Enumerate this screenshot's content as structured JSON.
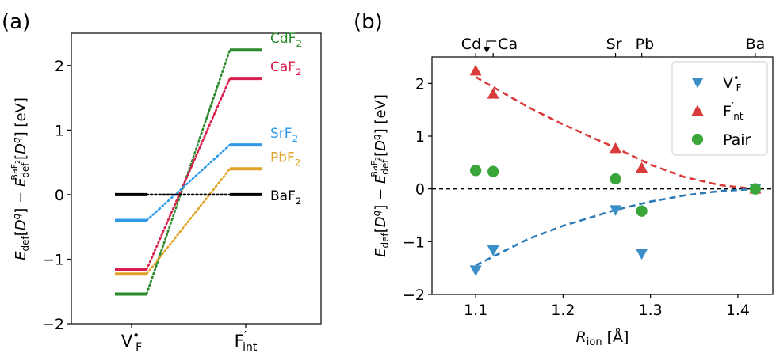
{
  "chart_data": [
    {
      "type": "line",
      "panel_label": "(a)",
      "categories": [
        "V•F",
        "F′int"
      ],
      "ylim": [
        -2,
        2.5
      ],
      "yticks": [
        -2,
        -1,
        0,
        1,
        2
      ],
      "ylabel": "Edef[Dq] − Edef^BaF2[Dq] [eV]",
      "series": [
        {
          "name": "CdF2",
          "values": [
            -1.54,
            2.24
          ],
          "color": "#2a8a2a"
        },
        {
          "name": "CaF2",
          "values": [
            -1.16,
            1.8
          ],
          "color": "#d81e4c"
        },
        {
          "name": "SrF2",
          "values": [
            -0.4,
            0.77
          ],
          "color": "#2f9ae8"
        },
        {
          "name": "PbF2",
          "values": [
            -1.23,
            0.4
          ],
          "color": "#e0a328"
        },
        {
          "name": "BaF2",
          "values": [
            0.0,
            0.0
          ],
          "color": "#000000"
        }
      ]
    },
    {
      "type": "scatter",
      "panel_label": "(b)",
      "xlabel": "Rion [Å]",
      "ylabel": "Edef[Dq] − Edef^BaF2[Dq] [eV]",
      "xlim": [
        1.05,
        1.44
      ],
      "ylim": [
        -2,
        2.5
      ],
      "xticks": [
        1.1,
        1.2,
        1.3,
        1.4
      ],
      "yticks": [
        -2,
        -1,
        0,
        1,
        2
      ],
      "top_labels": [
        {
          "text": "Cd",
          "x": 1.1
        },
        {
          "text": "Ca",
          "x": 1.12
        },
        {
          "text": "Sr",
          "x": 1.26
        },
        {
          "text": "Pb",
          "x": 1.29
        },
        {
          "text": "Ba",
          "x": 1.42
        }
      ],
      "legend_position": "top-right",
      "series": [
        {
          "name": "V•F",
          "marker": "triangle-down",
          "color": "#3a8fc8",
          "points": [
            [
              1.1,
              -1.54
            ],
            [
              1.12,
              -1.16
            ],
            [
              1.26,
              -0.4
            ],
            [
              1.29,
              -1.23
            ],
            [
              1.42,
              0.0
            ]
          ]
        },
        {
          "name": "F′int",
          "marker": "triangle-up",
          "color": "#d93a3a",
          "points": [
            [
              1.1,
              2.24
            ],
            [
              1.12,
              1.8
            ],
            [
              1.26,
              0.77
            ],
            [
              1.29,
              0.4
            ],
            [
              1.42,
              0.0
            ]
          ]
        },
        {
          "name": "Pair",
          "marker": "circle",
          "color": "#3aa63a",
          "points": [
            [
              1.1,
              0.35
            ],
            [
              1.12,
              0.33
            ],
            [
              1.26,
              0.19
            ],
            [
              1.29,
              -0.42
            ],
            [
              1.42,
              0.0
            ]
          ]
        }
      ],
      "fits": [
        {
          "color": "#d93a3a",
          "points": [
            [
              1.1,
              2.12
            ],
            [
              1.16,
              1.55
            ],
            [
              1.2,
              1.22
            ],
            [
              1.26,
              0.78
            ],
            [
              1.3,
              0.46
            ],
            [
              1.34,
              0.22
            ],
            [
              1.38,
              0.07
            ],
            [
              1.42,
              0.0
            ]
          ]
        },
        {
          "color": "#2a7ab8",
          "points": [
            [
              1.1,
              -1.45
            ],
            [
              1.16,
              -0.95
            ],
            [
              1.2,
              -0.7
            ],
            [
              1.26,
              -0.4
            ],
            [
              1.3,
              -0.24
            ],
            [
              1.34,
              -0.12
            ],
            [
              1.38,
              -0.04
            ],
            [
              1.42,
              0.0
            ]
          ]
        }
      ]
    }
  ]
}
